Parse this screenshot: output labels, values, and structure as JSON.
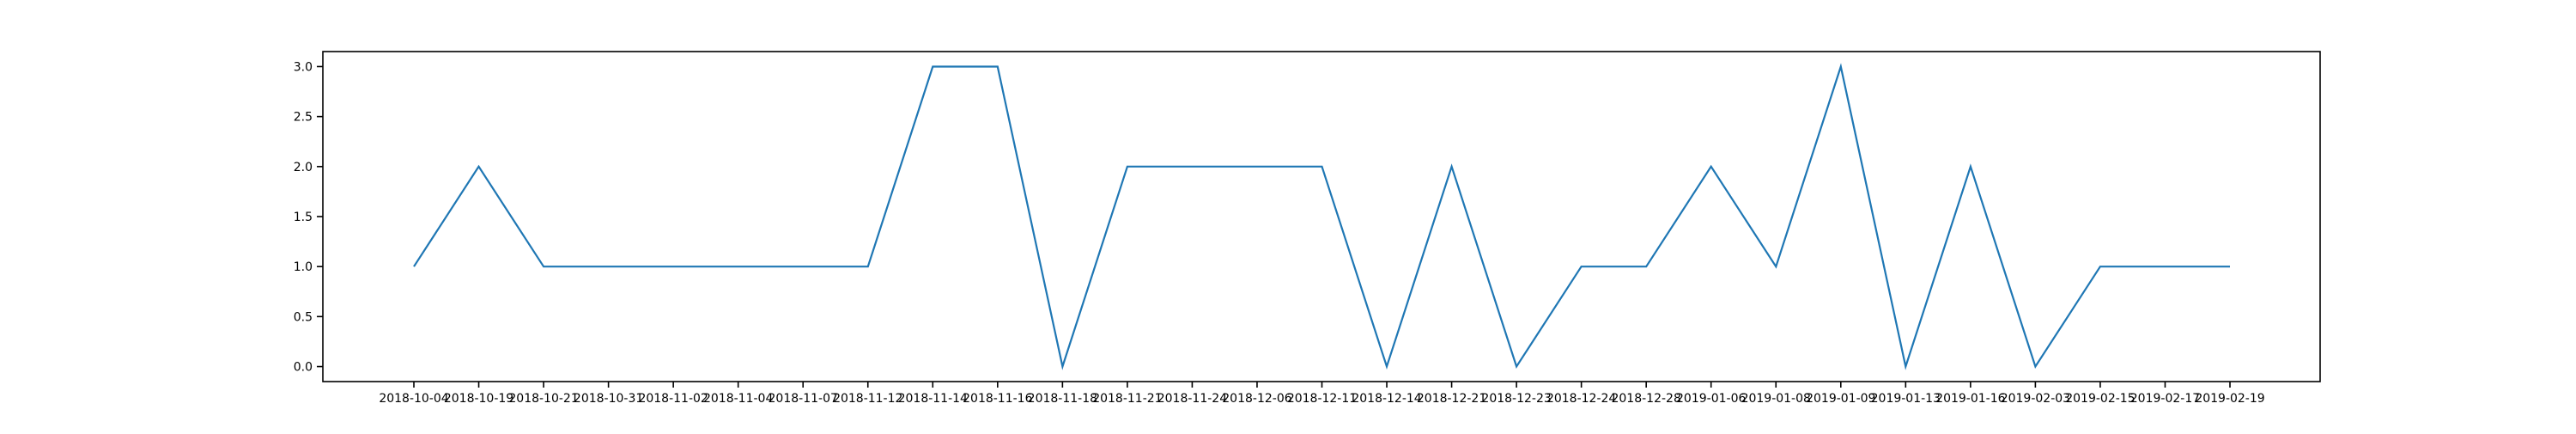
{
  "chart_data": {
    "type": "line",
    "title": "",
    "xlabel": "",
    "ylabel": "",
    "categories": [
      "2018-10-04",
      "2018-10-19",
      "2018-10-21",
      "2018-10-31",
      "2018-11-02",
      "2018-11-04",
      "2018-11-07",
      "2018-11-12",
      "2018-11-14",
      "2018-11-16",
      "2018-11-18",
      "2018-11-21",
      "2018-11-24",
      "2018-12-06",
      "2018-12-11",
      "2018-12-14",
      "2018-12-21",
      "2018-12-23",
      "2018-12-24",
      "2018-12-28",
      "2019-01-06",
      "2019-01-08",
      "2019-01-09",
      "2019-01-13",
      "2019-01-16",
      "2019-02-03",
      "2019-02-15",
      "2019-02-17",
      "2019-02-19"
    ],
    "series": [
      {
        "values": [
          1,
          2,
          1,
          1,
          1,
          1,
          1,
          1,
          3,
          3,
          0,
          2,
          2,
          2,
          2,
          0,
          2,
          0,
          1,
          1,
          2,
          1,
          3,
          0,
          2,
          0,
          1,
          1,
          1
        ],
        "color": "#1f77b4"
      }
    ],
    "ylim": [
      -0.15,
      3.15
    ],
    "yticks": [
      0.0,
      0.5,
      1.0,
      1.5,
      2.0,
      2.5,
      3.0
    ],
    "ytick_labels": [
      "0.0",
      "0.5",
      "1.0",
      "1.5",
      "2.0",
      "2.5",
      "3.0"
    ],
    "grid": false,
    "legend": false
  }
}
